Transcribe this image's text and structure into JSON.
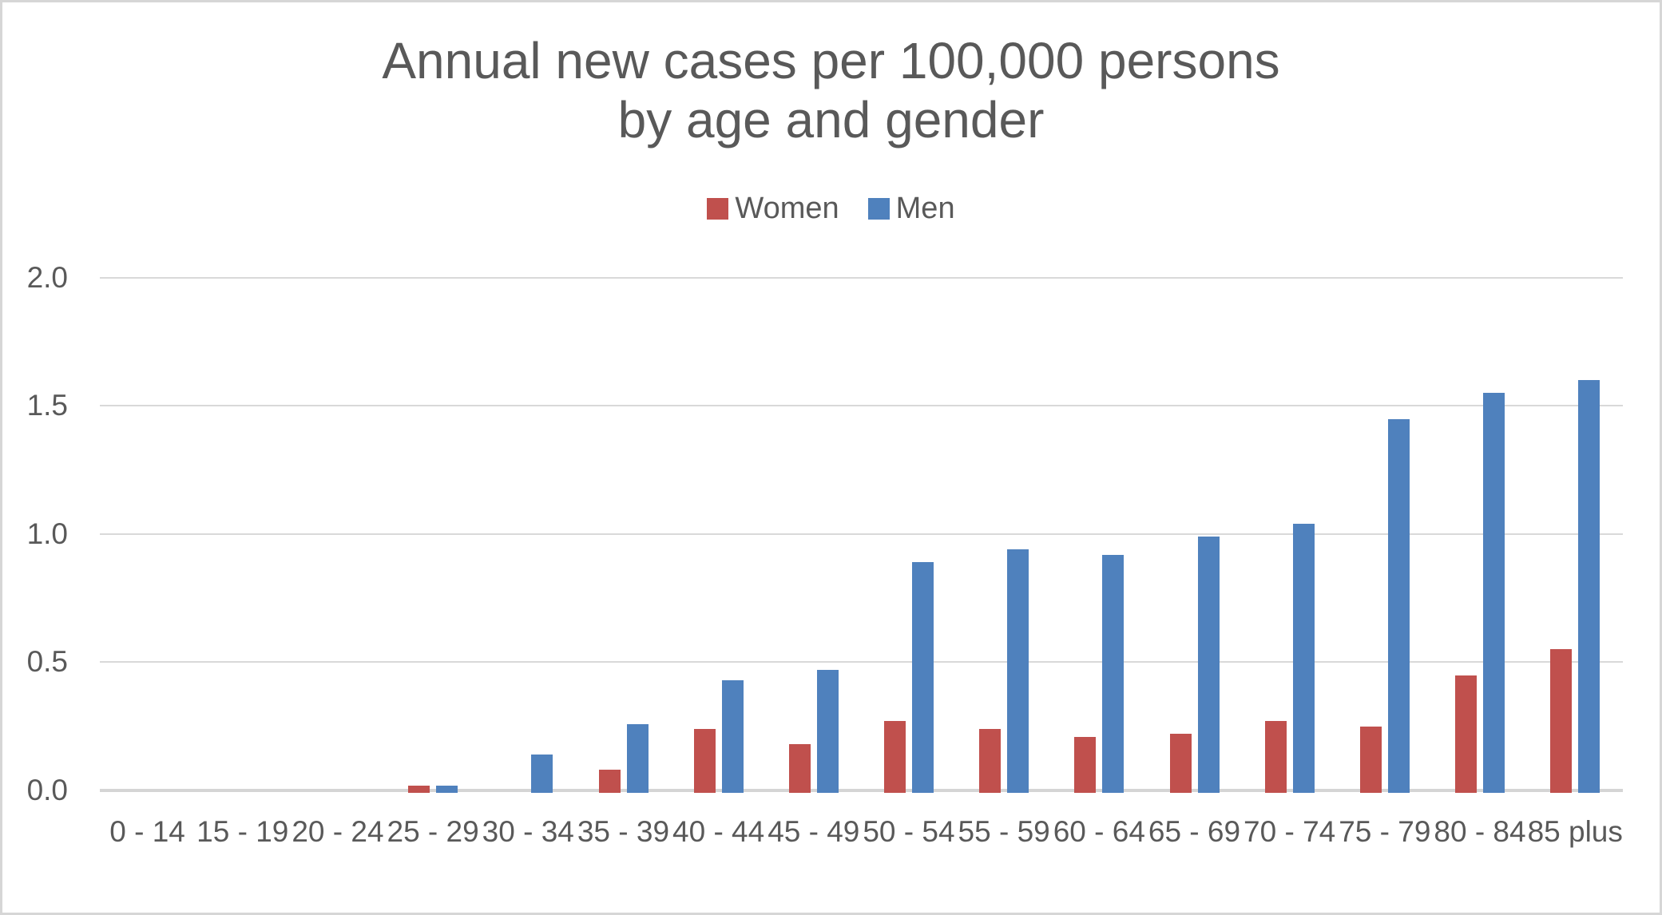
{
  "page": {
    "background": "#ffffff",
    "border_color": "#d6d6d6"
  },
  "chart_data": {
    "type": "bar",
    "title": "Annual new cases per 100,000 persons by age and gender",
    "title_lines": [
      "Annual new cases per 100,000 persons",
      "by age and gender"
    ],
    "categories": [
      "0 - 14",
      "15 - 19",
      "20 - 24",
      "25 - 29",
      "30 - 34",
      "35 - 39",
      "40 - 44",
      "45 - 49",
      "50 - 54",
      "55 - 59",
      "60 - 64",
      "65 - 69",
      "70 - 74",
      "75 - 79",
      "80 - 84",
      "85 plus"
    ],
    "series": [
      {
        "name": "Women",
        "color": "#C0504D",
        "values": [
          0,
          0,
          0,
          0.02,
          0,
          0.08,
          0.24,
          0.18,
          0.27,
          0.24,
          0.21,
          0.22,
          0.27,
          0.25,
          0.45,
          0.55
        ]
      },
      {
        "name": "Men",
        "color": "#4F81BD",
        "values": [
          0,
          0,
          0,
          0.02,
          0.14,
          0.26,
          0.43,
          0.47,
          0.89,
          0.94,
          0.92,
          0.99,
          1.04,
          1.45,
          1.55,
          1.6
        ]
      }
    ],
    "xlabel": "",
    "ylabel": "",
    "ylim": [
      0,
      2
    ],
    "yticks": [
      0,
      0.5,
      1,
      1.5,
      2
    ],
    "ytick_labels": [
      "0.0",
      "0.5",
      "1.0",
      "1.5",
      "2.0"
    ],
    "grid": true,
    "legend_position": "top",
    "text_color": "#595959",
    "gridline_color": "#d9d9d9",
    "axisline_color": "#d5d5d5"
  }
}
